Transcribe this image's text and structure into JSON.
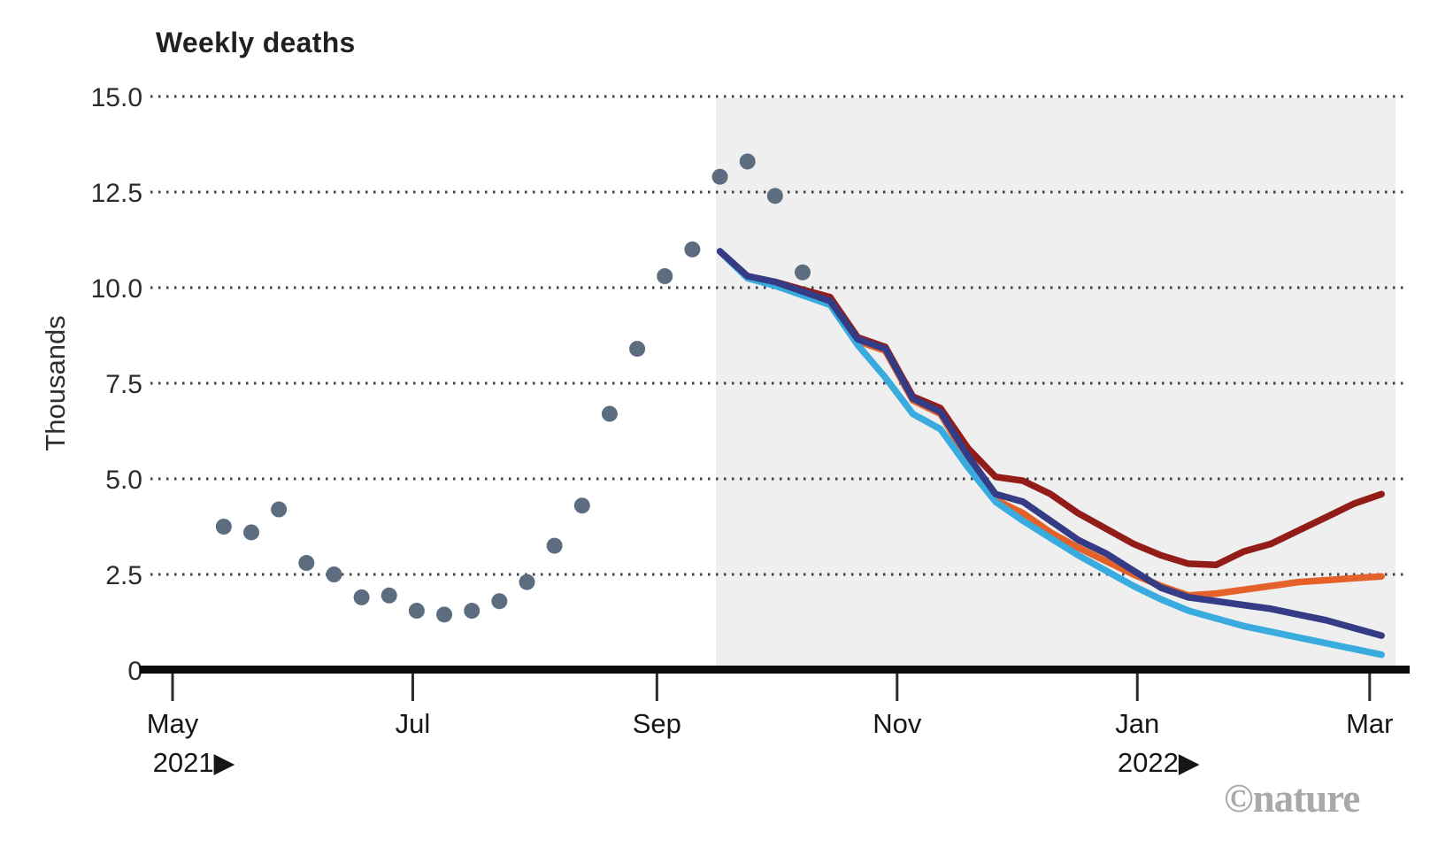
{
  "watermark": "©nature",
  "chart_data": {
    "type": "line",
    "title": "Weekly deaths",
    "ylabel": "Thousands",
    "ylim": [
      0,
      15
    ],
    "grid": "dotted-horizontal",
    "legend_position": "none",
    "colors": {
      "axis": "#0a0a0a",
      "grid": "#3f3f3f",
      "observed_dots": "#5d6d80",
      "projection_shade": "#efefef"
    },
    "y_ticks": [
      {
        "label": "15.0",
        "value": 15
      },
      {
        "label": "12.5",
        "value": 12.5
      },
      {
        "label": "10.0",
        "value": 10
      },
      {
        "label": "7.5",
        "value": 7.5
      },
      {
        "label": "5.0",
        "value": 5
      },
      {
        "label": "2.5",
        "value": 2.5
      },
      {
        "label": "0",
        "value": 0
      }
    ],
    "x_ticks": [
      {
        "label": "May",
        "date": "2021-05-01"
      },
      {
        "label": "Jul",
        "date": "2021-07-01"
      },
      {
        "label": "Sep",
        "date": "2021-09-01"
      },
      {
        "label": "Nov",
        "date": "2021-11-01"
      },
      {
        "label": "Jan",
        "date": "2022-01-01"
      },
      {
        "label": "Mar",
        "date": "2022-03-01"
      }
    ],
    "year_markers": [
      {
        "label": "2021▶",
        "date": "2021-05-01"
      },
      {
        "label": "2022▶",
        "date": "2022-01-01"
      }
    ],
    "projection_region": {
      "start_date": "2021-09-16",
      "fill": "#efefef"
    },
    "observed_points": {
      "name": "observed-weekly-deaths",
      "color": "#5d6d80",
      "start_date": "2021-05-14",
      "interval_days": 7,
      "values": [
        3.75,
        3.6,
        4.2,
        2.8,
        2.5,
        1.9,
        1.95,
        1.55,
        1.45,
        1.55,
        1.8,
        2.3,
        3.25,
        4.3,
        6.7,
        8.4,
        10.3,
        11.0,
        12.9,
        13.3,
        12.4,
        10.4
      ]
    },
    "series": [
      {
        "name": "projection-dark-red",
        "color": "#921d18",
        "start_date": "2021-09-17",
        "interval_days": 7,
        "values": [
          10.95,
          10.3,
          10.15,
          9.95,
          9.75,
          8.7,
          8.45,
          7.15,
          6.85,
          5.8,
          5.05,
          4.95,
          4.6,
          4.1,
          3.7,
          3.3,
          3.0,
          2.78,
          2.75,
          3.1,
          3.3,
          3.65,
          4.0,
          4.35,
          4.6
        ]
      },
      {
        "name": "projection-orange",
        "color": "#e4622a",
        "start_date": "2021-09-17",
        "interval_days": 7,
        "values": [
          10.95,
          10.3,
          10.1,
          9.85,
          9.6,
          8.6,
          8.35,
          7.05,
          6.7,
          5.5,
          4.45,
          4.1,
          3.6,
          3.2,
          2.85,
          2.5,
          2.2,
          1.95,
          2.0,
          2.1,
          2.2,
          2.3,
          2.35,
          2.4,
          2.45
        ]
      },
      {
        "name": "projection-light-blue",
        "color": "#3aabdf",
        "start_date": "2021-09-17",
        "interval_days": 7,
        "values": [
          10.95,
          10.25,
          10.05,
          9.8,
          9.55,
          8.5,
          7.65,
          6.7,
          6.3,
          5.3,
          4.4,
          3.9,
          3.45,
          3.0,
          2.6,
          2.2,
          1.85,
          1.55,
          1.35,
          1.15,
          1.0,
          0.85,
          0.7,
          0.55,
          0.4
        ]
      },
      {
        "name": "projection-navy",
        "color": "#333c85",
        "start_date": "2021-09-17",
        "interval_days": 7,
        "values": [
          10.95,
          10.3,
          10.15,
          9.9,
          9.65,
          8.65,
          8.4,
          7.1,
          6.75,
          5.6,
          4.6,
          4.4,
          3.9,
          3.4,
          3.05,
          2.6,
          2.15,
          1.9,
          1.8,
          1.7,
          1.6,
          1.45,
          1.3,
          1.1,
          0.9
        ]
      }
    ]
  }
}
